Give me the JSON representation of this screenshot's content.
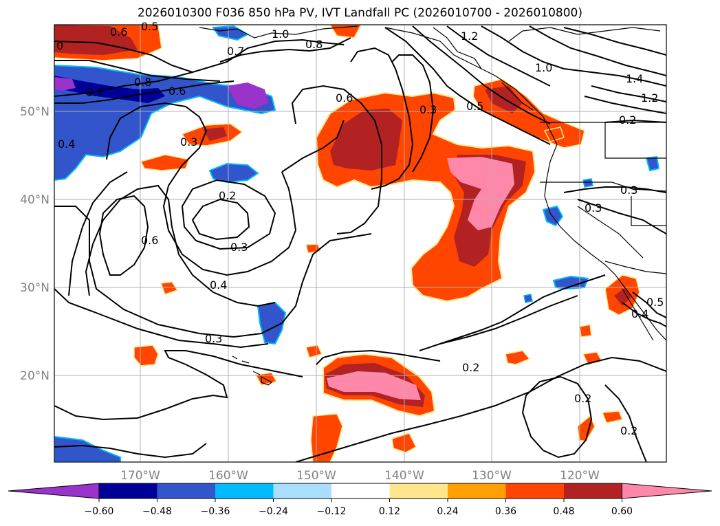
{
  "title": "2026010300 F036 850 hPa PV, IVT Landfall PC (2026010700 - 2026010800)",
  "lat_labels": [
    "50°N",
    "40°N",
    "30°N",
    "20°N"
  ],
  "lon_labels": [
    "170°W",
    "160°W",
    "150°W",
    "140°W",
    "130°W",
    "120°W"
  ],
  "colorbar": {
    "ticks": [
      "−0.60",
      "−0.48",
      "−0.36",
      "−0.24",
      "−0.12",
      "0.12",
      "0.24",
      "0.36",
      "0.48",
      "0.60"
    ],
    "colors": [
      "#9933cc",
      "#000099",
      "#3355cc",
      "#00bbff",
      "#aadeff",
      "#ffffff",
      "#ffe68c",
      "#ffa000",
      "#ff4500",
      "#b22222",
      "#ff88aa"
    ]
  },
  "contour_labels": [
    "0.6",
    "0.5",
    "0.7",
    "0.8",
    "1.0",
    "1.2",
    "1.4",
    "1.2",
    "0.7",
    "0.8",
    "0.6",
    "0.4",
    "0.3",
    "0.2",
    "0.6",
    "0.3",
    "0.4",
    "0.3",
    "0.2",
    "0.2",
    "0.6",
    "0.3",
    "0.5",
    "1.0",
    "0.3",
    "0.3",
    "0.4",
    "0.5",
    "0.2",
    "0.2",
    "0"
  ]
}
